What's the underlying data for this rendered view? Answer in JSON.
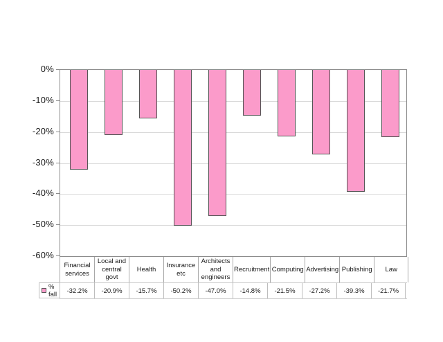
{
  "chart_data": {
    "type": "bar",
    "title": "",
    "categories": [
      "Financial services",
      "Local and central govt",
      "Health",
      "Insurance etc",
      "Architects and engineers",
      "Recruitment",
      "Computing",
      "Advertising",
      "Publishing",
      "Law"
    ],
    "series": [
      {
        "name": "% fall",
        "values": [
          -32.2,
          -20.9,
          -15.7,
          -50.2,
          -47.0,
          -14.8,
          -21.5,
          -27.2,
          -39.3,
          -21.7
        ]
      }
    ],
    "value_labels": [
      "-32.2%",
      "-20.9%",
      "-15.7%",
      "-50.2%",
      "-47.0%",
      "-14.8%",
      "-21.5%",
      "-27.2%",
      "-39.3%",
      "-21.7%"
    ],
    "y_ticks": [
      "0%",
      "-10%",
      "-20%",
      "-30%",
      "-40%",
      "-50%",
      "-60%"
    ],
    "ylim": [
      -60,
      0
    ],
    "xlabel": "",
    "ylabel": "",
    "grid": "horizontal",
    "legend": {
      "position": "bottom-left-table",
      "label": "% fall"
    },
    "bar_color": "#FB9BCA",
    "bar_border_color": "#555555",
    "data_table_shown": true
  }
}
